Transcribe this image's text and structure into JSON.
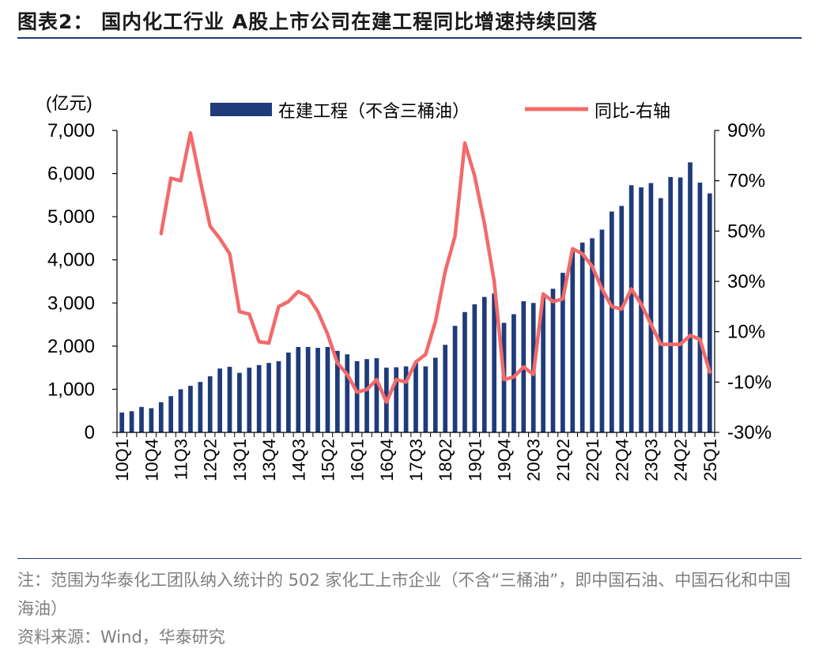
{
  "title": "图表2：  国内化工行业 A股上市公司在建工程同比增速持续回落",
  "note": "注：范围为华泰化工团队纳入统计的 502 家化工上市企业（不含“三桶油”，即中国石油、中国石化和中国海油）",
  "source": "资料来源：Wind，华泰研究",
  "colors": {
    "bar": "#1f3b7a",
    "line": "#f26a6a",
    "title_rule": "#1f3b7a"
  },
  "chart_data": {
    "type": "bar",
    "left_unit": "(亿元)",
    "legend_position": "top",
    "grid": false,
    "left_ylim": [
      0,
      7000
    ],
    "right_ylim": [
      -0.3,
      0.9
    ],
    "left_ticks": [
      "0",
      "1,000",
      "2,000",
      "3,000",
      "4,000",
      "5,000",
      "6,000",
      "7,000"
    ],
    "right_ticks": [
      "-30%",
      "-10%",
      "10%",
      "30%",
      "50%",
      "70%",
      "90%"
    ],
    "categories": [
      "10Q1",
      "10Q2",
      "10Q3",
      "10Q4",
      "11Q1",
      "11Q2",
      "11Q3",
      "11Q4",
      "12Q1",
      "12Q2",
      "12Q3",
      "12Q4",
      "13Q1",
      "13Q2",
      "13Q3",
      "13Q4",
      "14Q1",
      "14Q2",
      "14Q3",
      "14Q4",
      "15Q1",
      "15Q2",
      "15Q3",
      "15Q4",
      "16Q1",
      "16Q2",
      "16Q3",
      "16Q4",
      "17Q1",
      "17Q2",
      "17Q3",
      "17Q4",
      "18Q1",
      "18Q2",
      "18Q3",
      "18Q4",
      "19Q1",
      "19Q2",
      "19Q3",
      "19Q4",
      "20Q1",
      "20Q2",
      "20Q3",
      "20Q4",
      "21Q1",
      "21Q2",
      "21Q3",
      "21Q4",
      "22Q1",
      "22Q2",
      "22Q3",
      "22Q4",
      "23Q1",
      "23Q2",
      "23Q3",
      "23Q4",
      "24Q1",
      "24Q2",
      "24Q3",
      "24Q4",
      "25Q1"
    ],
    "x_tick_labels": [
      "10Q1",
      "10Q4",
      "11Q3",
      "12Q2",
      "13Q1",
      "13Q4",
      "14Q3",
      "15Q2",
      "16Q1",
      "16Q4",
      "17Q3",
      "18Q2",
      "19Q1",
      "19Q4",
      "20Q3",
      "21Q2",
      "22Q1",
      "22Q4",
      "23Q3",
      "24Q2",
      "25Q1"
    ],
    "series": [
      {
        "name": "在建工程（不含三桶油）",
        "type": "bar",
        "axis": "left",
        "values": [
          460,
          490,
          590,
          560,
          700,
          840,
          1000,
          1080,
          1170,
          1300,
          1480,
          1520,
          1380,
          1500,
          1560,
          1610,
          1650,
          1850,
          1980,
          1980,
          1960,
          1980,
          1890,
          1810,
          1650,
          1700,
          1720,
          1500,
          1510,
          1530,
          1610,
          1530,
          1730,
          2030,
          2470,
          2790,
          2970,
          3140,
          3220,
          2540,
          2740,
          3040,
          3000,
          3150,
          3330,
          3700,
          4200,
          4400,
          4500,
          4700,
          5120,
          5250,
          5730,
          5680,
          5780,
          5430,
          5920,
          5910,
          6260,
          5790,
          5540
        ]
      },
      {
        "name": "同比-右轴",
        "type": "line",
        "axis": "right",
        "values": [
          null,
          null,
          null,
          null,
          0.49,
          0.71,
          0.7,
          0.89,
          0.7,
          0.52,
          0.47,
          0.41,
          0.18,
          0.17,
          0.06,
          0.055,
          0.2,
          0.22,
          0.26,
          0.24,
          0.18,
          0.09,
          -0.025,
          -0.07,
          -0.14,
          -0.13,
          -0.09,
          -0.18,
          -0.09,
          -0.1,
          -0.02,
          0.01,
          0.14,
          0.34,
          0.48,
          0.85,
          0.72,
          0.53,
          0.3,
          -0.09,
          -0.08,
          -0.04,
          -0.07,
          0.25,
          0.22,
          0.23,
          0.43,
          0.41,
          0.36,
          0.27,
          0.2,
          0.19,
          0.27,
          0.21,
          0.13,
          0.05,
          0.05,
          0.05,
          0.085,
          0.07,
          -0.06
        ]
      }
    ]
  }
}
